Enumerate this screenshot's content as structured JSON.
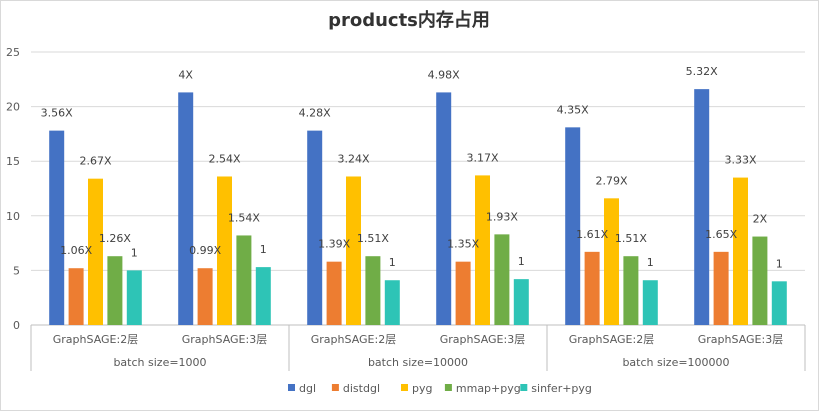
{
  "chart_data": {
    "type": "bar",
    "title": "products内存占用",
    "ylim": [
      0,
      25
    ],
    "yticks": [
      0,
      5,
      10,
      15,
      20,
      25
    ],
    "grid": true,
    "legend_position": "bottom",
    "groups": [
      {
        "label": "batch size=1000",
        "categories": [
          "GraphSAGE:2层",
          "GraphSAGE:3层"
        ]
      },
      {
        "label": "batch size=10000",
        "categories": [
          "GraphSAGE:2层",
          "GraphSAGE:3层"
        ]
      },
      {
        "label": "batch size=100000",
        "categories": [
          "GraphSAGE:2层",
          "GraphSAGE:3层"
        ]
      }
    ],
    "series": [
      {
        "name": "dgl",
        "color": "#4472C4",
        "values": [
          17.8,
          21.3,
          17.8,
          21.3,
          18.1,
          21.6
        ],
        "labels": [
          "3.56X",
          "4X",
          "4.28X",
          "4.98X",
          "4.35X",
          "5.32X"
        ]
      },
      {
        "name": "distdgl",
        "color": "#ED7D31",
        "values": [
          5.2,
          5.2,
          5.8,
          5.8,
          6.7,
          6.7
        ],
        "labels": [
          "1.06X",
          "0.99X",
          "1.39X",
          "1.35X",
          "1.61X",
          "1.65X"
        ]
      },
      {
        "name": "pyg",
        "color": "#FFC000",
        "values": [
          13.4,
          13.6,
          13.6,
          13.7,
          11.6,
          13.5
        ],
        "labels": [
          "2.67X",
          "2.54X",
          "3.24X",
          "3.17X",
          "2.79X",
          "3.33X"
        ]
      },
      {
        "name": "mmap+pyg",
        "color": "#70AD47",
        "values": [
          6.3,
          8.2,
          6.3,
          8.3,
          6.3,
          8.1
        ],
        "labels": [
          "1.26X",
          "1.54X",
          "1.51X",
          "1.93X",
          "1.51X",
          "2X"
        ]
      },
      {
        "name": "sinfer+pyg",
        "color": "#2EC4B6",
        "values": [
          5.0,
          5.3,
          4.1,
          4.2,
          4.1,
          4.0
        ],
        "labels": [
          "1",
          "1",
          "1",
          "1",
          "1",
          "1"
        ]
      }
    ]
  }
}
